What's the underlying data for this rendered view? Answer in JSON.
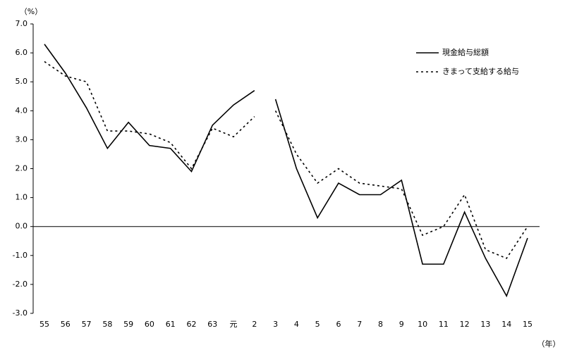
{
  "chart_data": {
    "type": "line",
    "y_unit": "（%）",
    "x_unit": "（年）",
    "categories": [
      "55",
      "56",
      "57",
      "58",
      "59",
      "60",
      "61",
      "62",
      "63",
      "元",
      "2",
      "3",
      "4",
      "5",
      "6",
      "7",
      "8",
      "9",
      "10",
      "11",
      "12",
      "13",
      "14",
      "15"
    ],
    "break_after": [
      10
    ],
    "series": [
      {
        "name": "現金給与総額",
        "color": "#000000",
        "dash": "solid",
        "values": [
          6.3,
          5.3,
          4.1,
          2.7,
          3.6,
          2.8,
          2.7,
          1.9,
          3.5,
          4.2,
          4.7,
          4.4,
          2.0,
          0.3,
          1.5,
          1.1,
          1.1,
          1.6,
          -1.3,
          -1.3,
          0.5,
          -1.1,
          -2.4,
          -0.4
        ]
      },
      {
        "name": "きまって支給する給与",
        "color": "#000000",
        "dash": "dashed",
        "values": [
          5.7,
          5.2,
          5.0,
          3.3,
          3.3,
          3.2,
          2.9,
          2.0,
          3.4,
          3.1,
          3.8,
          4.0,
          2.5,
          1.5,
          2.0,
          1.5,
          1.4,
          1.3,
          -0.3,
          0.0,
          1.1,
          -0.8,
          -1.1,
          0.0
        ]
      }
    ],
    "ylim": [
      -3,
      7
    ],
    "yticks": [
      {
        "value": -3,
        "label": "-3.0"
      },
      {
        "value": -2,
        "label": "-2.0"
      },
      {
        "value": -1,
        "label": "-1.0"
      },
      {
        "value": 0,
        "label": "0.0"
      },
      {
        "value": 1,
        "label": "1.0"
      },
      {
        "value": 2,
        "label": "2.0"
      },
      {
        "value": 3,
        "label": "3.0"
      },
      {
        "value": 4,
        "label": "4.0"
      },
      {
        "value": 5,
        "label": "5.0"
      },
      {
        "value": 6,
        "label": "6.0"
      },
      {
        "value": 7,
        "label": "7.0"
      }
    ],
    "legend": "top-right",
    "grid": false
  }
}
